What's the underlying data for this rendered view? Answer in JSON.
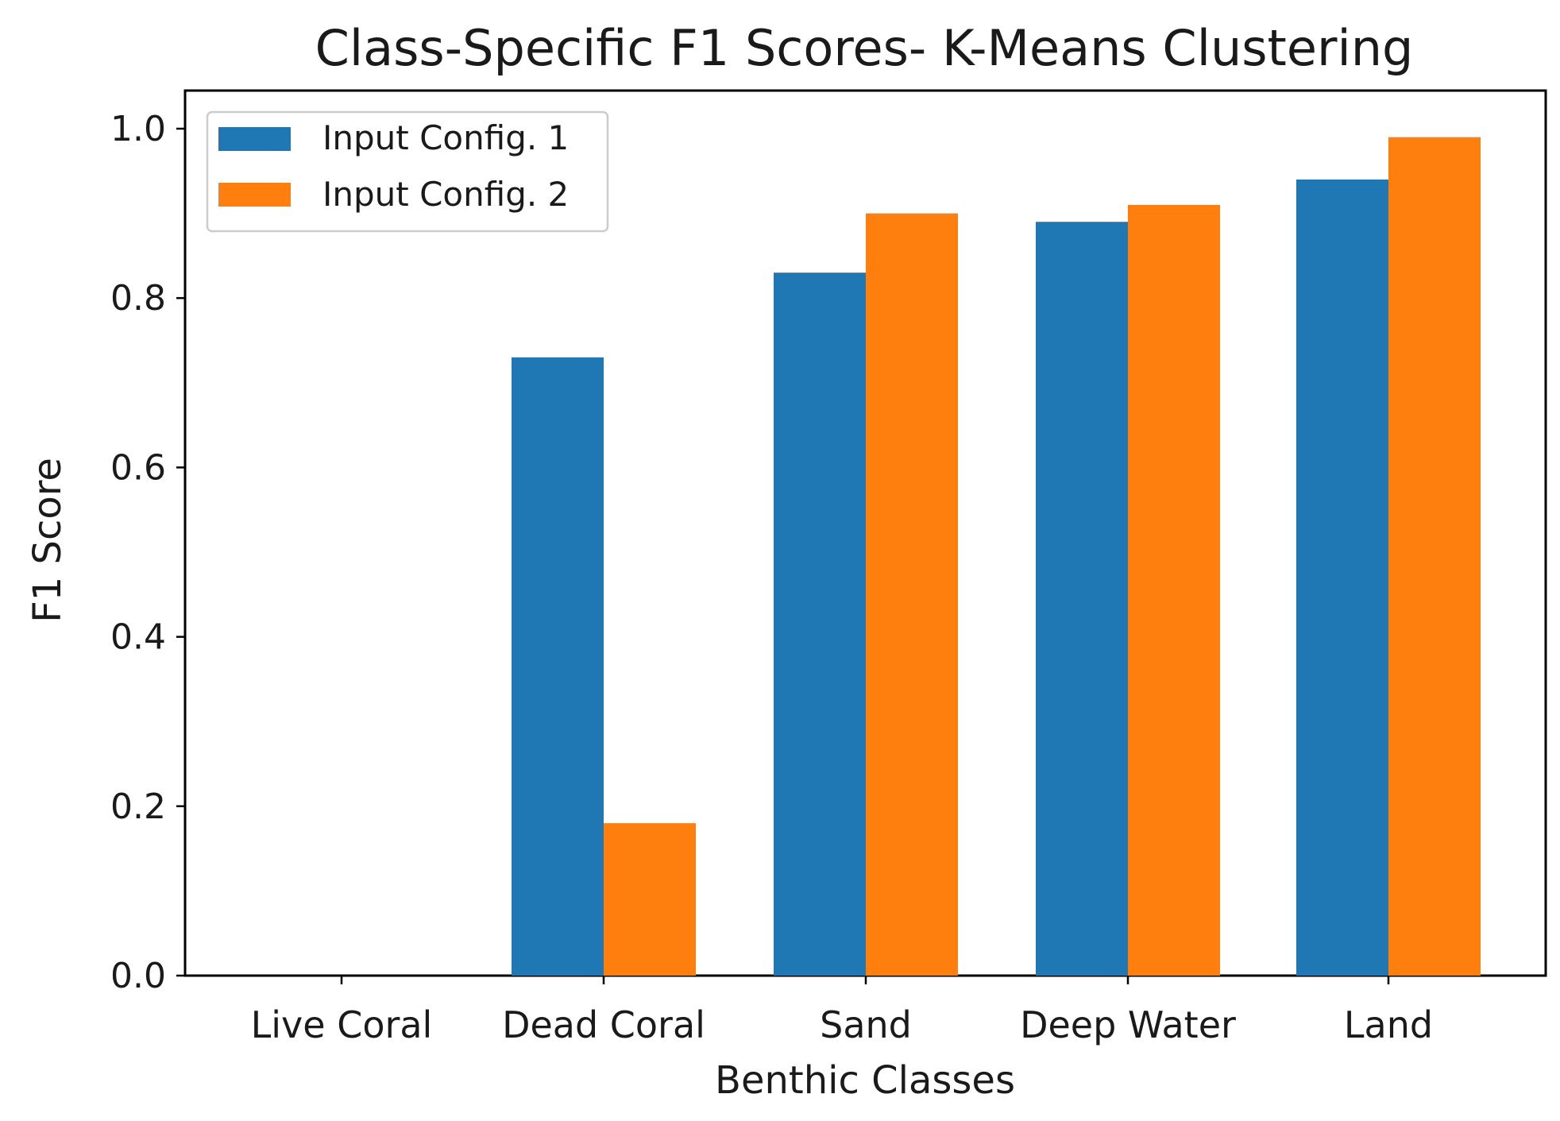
{
  "chart_data": {
    "type": "bar",
    "title": "Class-Specific F1 Scores- K-Means Clustering",
    "xlabel": "Benthic Classes",
    "ylabel": "F1 Score",
    "categories": [
      "Live Coral",
      "Dead Coral",
      "Sand",
      "Deep Water",
      "Land"
    ],
    "series": [
      {
        "name": "Input Config. 1",
        "color": "#1f77b4",
        "values": [
          0.0,
          0.73,
          0.83,
          0.89,
          0.94
        ]
      },
      {
        "name": "Input Config. 2",
        "color": "#ff7f0e",
        "values": [
          0.0,
          0.18,
          0.9,
          0.91,
          0.99
        ]
      }
    ],
    "ylim": [
      0,
      1.045
    ],
    "yticks": [
      0.0,
      0.2,
      0.4,
      0.6,
      0.8,
      1.0
    ],
    "ytick_labels": [
      "0.0",
      "0.2",
      "0.4",
      "0.6",
      "0.8",
      "1.0"
    ],
    "grid": false,
    "legend_position": "top-left"
  }
}
